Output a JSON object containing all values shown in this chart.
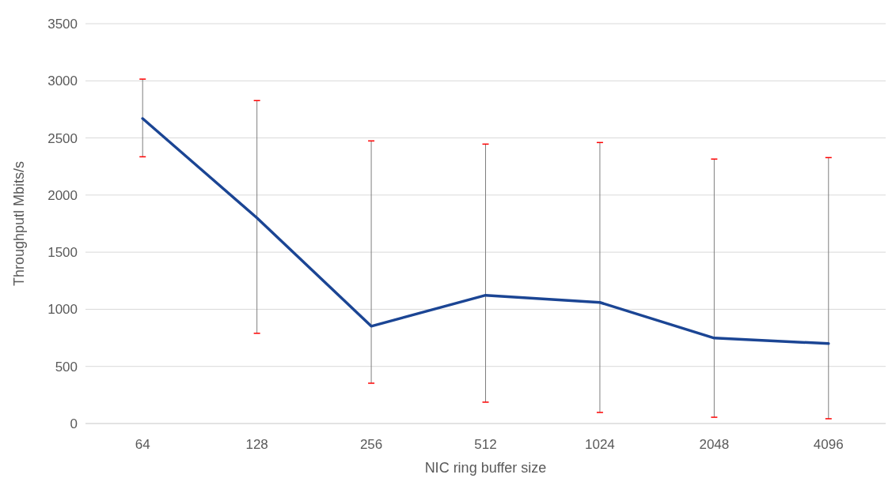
{
  "chart_data": {
    "type": "line",
    "xlabel": "NIC ring buffer size",
    "ylabel": "Throughputl Mbits/s",
    "categories": [
      "64",
      "128",
      "256",
      "512",
      "1024",
      "2048",
      "4096"
    ],
    "series": [
      {
        "color": "#1b4594",
        "values": [
          2670,
          1800,
          852,
          1123,
          1060,
          748,
          700
        ],
        "errors": [
          [
            2335,
            3015
          ],
          [
            790,
            2827
          ],
          [
            353,
            2474
          ],
          [
            187,
            2446
          ],
          [
            97,
            2460
          ],
          [
            55,
            2315
          ],
          [
            42,
            2328
          ]
        ]
      }
    ],
    "ylim": [
      0,
      3500
    ],
    "yticks": [
      0,
      500,
      1000,
      1500,
      2000,
      2500,
      3000,
      3500
    ],
    "grid": "y"
  }
}
